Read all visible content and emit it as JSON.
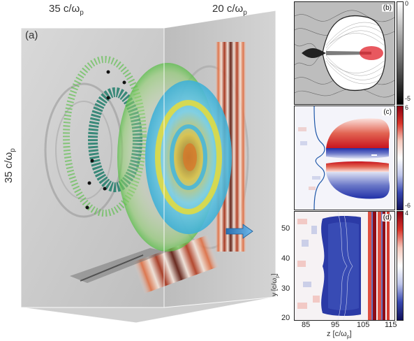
{
  "panel_a": {
    "label": "(a)",
    "dim_top_left": "35 c/ω",
    "dim_top_left_sub": "p",
    "dim_top_right": "20 c/ω",
    "dim_top_right_sub": "p",
    "dim_left": "35 c/ω",
    "dim_left_sub": "p"
  },
  "panel_b": {
    "label": "(b)",
    "colorbar_ticks": [
      "0",
      "-5"
    ]
  },
  "panel_c": {
    "label": "(c)",
    "colorbar_ticks": [
      "6",
      "-6"
    ]
  },
  "panel_d": {
    "label": "(d)",
    "colorbar_ticks": [
      "4"
    ]
  },
  "axes": {
    "y_label": "y [c/ω",
    "y_label_sub": "p",
    "y_label_close": "]",
    "y_ticks": [
      "50",
      "40",
      "30",
      "20"
    ],
    "x_label": "z [c/ω",
    "x_label_sub": "p",
    "x_label_close": "]",
    "x_ticks": [
      "85",
      "95",
      "105",
      "115"
    ]
  },
  "colors": {
    "box_bg": "#c9c9c9",
    "pulse_red": "#c0391a",
    "ring_green": "#5dbb4a",
    "disk_yellow": "#e8e03a",
    "disk_cyan": "#5fc8e0",
    "arrow_blue": "#3a8fd0"
  }
}
